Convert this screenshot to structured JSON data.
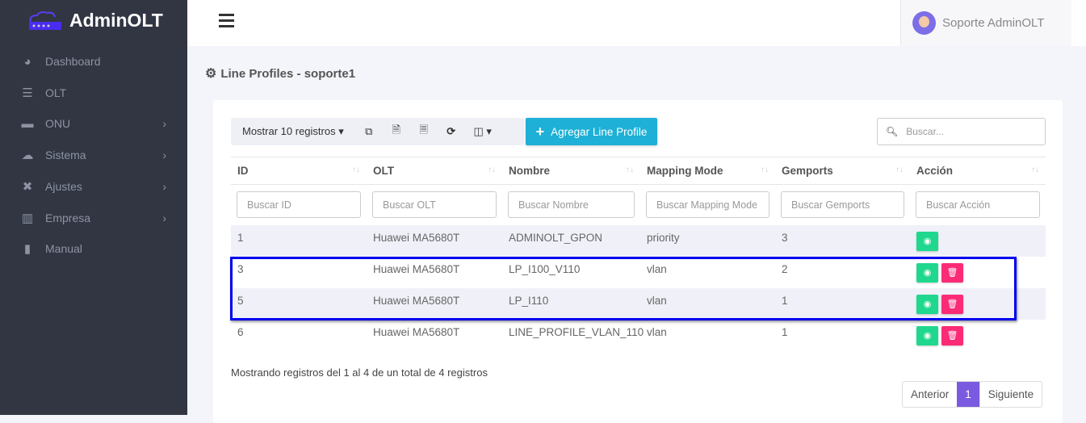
{
  "app": {
    "name": "AdminOLT"
  },
  "sidebar": {
    "items": [
      {
        "label": "Dashboard",
        "icon": "tachometer-icon",
        "submenu": false
      },
      {
        "label": "OLT",
        "icon": "server-icon",
        "submenu": false
      },
      {
        "label": "ONU",
        "icon": "hdd-icon",
        "submenu": true
      },
      {
        "label": "Sistema",
        "icon": "cloud-icon",
        "submenu": true
      },
      {
        "label": "Ajustes",
        "icon": "tools-icon",
        "submenu": true
      },
      {
        "label": "Empresa",
        "icon": "building-icon",
        "submenu": true
      },
      {
        "label": "Manual",
        "icon": "book-icon",
        "submenu": false
      }
    ]
  },
  "header": {
    "user": "Soporte AdminOLT"
  },
  "page": {
    "title": "Line Profiles - soporte1"
  },
  "toolbar": {
    "show_label": "Mostrar 10 registros",
    "add_label": "Agregar Line Profile",
    "search_placeholder": "Buscar..."
  },
  "table": {
    "columns": [
      "ID",
      "OLT",
      "Nombre",
      "Mapping Mode",
      "Gemports",
      "Acción"
    ],
    "filters": [
      "Buscar ID",
      "Buscar OLT",
      "Buscar Nombre",
      "Buscar Mapping Mode",
      "Buscar Gemports",
      "Buscar Acción"
    ],
    "rows": [
      {
        "id": "1",
        "olt": "Huawei MA5680T",
        "nombre": "ADMINOLT_GPON",
        "mapping": "priority",
        "gemports": "3",
        "deletable": false
      },
      {
        "id": "3",
        "olt": "Huawei MA5680T",
        "nombre": "LP_I100_V110",
        "mapping": "vlan",
        "gemports": "2",
        "deletable": true
      },
      {
        "id": "5",
        "olt": "Huawei MA5680T",
        "nombre": "LP_I110",
        "mapping": "vlan",
        "gemports": "1",
        "deletable": true
      },
      {
        "id": "6",
        "olt": "Huawei MA5680T",
        "nombre": "LINE_PROFILE_VLAN_110",
        "mapping": "vlan",
        "gemports": "1",
        "deletable": true
      }
    ]
  },
  "footer": {
    "info": "Mostrando registros del 1 al 4 de un total de 4 registros",
    "prev": "Anterior",
    "page": "1",
    "next": "Siguiente"
  },
  "colors": {
    "sidebar": "#323643",
    "accent": "#7a5ae0",
    "add": "#1eb0d6",
    "view": "#1fd88e",
    "delete": "#fb2b76",
    "highlight": "#0000ee"
  }
}
